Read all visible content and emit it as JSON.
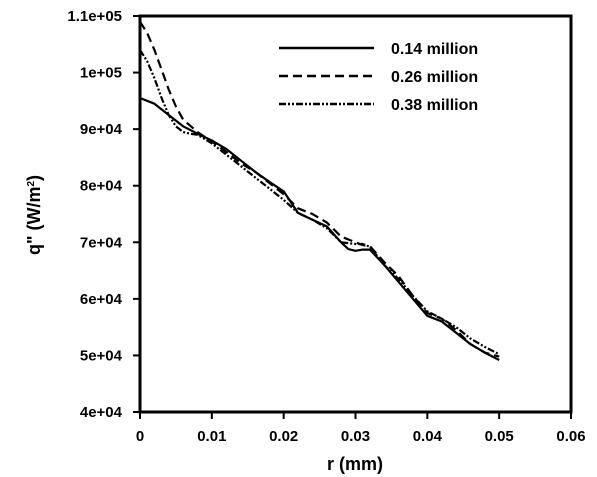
{
  "chart_data": {
    "type": "line",
    "title": "",
    "xlabel": "r (mm)",
    "ylabel_main": "q\" (W/m",
    "ylabel_sup": "2",
    "ylabel_close": ")",
    "xlim": [
      0,
      0.06
    ],
    "ylim": [
      40000,
      110000
    ],
    "xticks": [
      0,
      0.01,
      0.02,
      0.03,
      0.04,
      0.05,
      0.06
    ],
    "xtick_labels": [
      "0",
      "0.01",
      "0.02",
      "0.03",
      "0.04",
      "0.05",
      "0.06"
    ],
    "yticks": [
      40000,
      50000,
      60000,
      70000,
      80000,
      90000,
      100000,
      110000
    ],
    "ytick_labels": [
      "4e+04",
      "5e+04",
      "6e+04",
      "7e+04",
      "8e+04",
      "9e+04",
      "1e+05",
      "1.1e+05"
    ],
    "legend_position": "top-right",
    "grid": false,
    "series": [
      {
        "name": "0.14 million",
        "style": "solid",
        "color": "#000000",
        "x": [
          0,
          0.002,
          0.004,
          0.006,
          0.008,
          0.01,
          0.012,
          0.014,
          0.016,
          0.018,
          0.02,
          0.022,
          0.024,
          0.026,
          0.028,
          0.029,
          0.03,
          0.031,
          0.032,
          0.034,
          0.036,
          0.038,
          0.04,
          0.042,
          0.044,
          0.046,
          0.048,
          0.05
        ],
        "y": [
          95500,
          94500,
          92500,
          90500,
          89200,
          88000,
          86500,
          84500,
          82500,
          80700,
          79000,
          75200,
          74000,
          72800,
          70000,
          68800,
          68500,
          68700,
          68700,
          66000,
          63000,
          60000,
          57000,
          56000,
          54000,
          52000,
          50500,
          49200
        ]
      },
      {
        "name": "0.26 million",
        "style": "dashed",
        "color": "#000000",
        "x": [
          0,
          0.001,
          0.002,
          0.003,
          0.004,
          0.005,
          0.006,
          0.008,
          0.01,
          0.012,
          0.014,
          0.016,
          0.018,
          0.02,
          0.022,
          0.024,
          0.026,
          0.028,
          0.03,
          0.031,
          0.032,
          0.034,
          0.036,
          0.038,
          0.04,
          0.042,
          0.044,
          0.046,
          0.048,
          0.05
        ],
        "y": [
          109000,
          107000,
          104000,
          100500,
          97000,
          94000,
          91700,
          89500,
          87800,
          86000,
          84000,
          82500,
          80500,
          78500,
          76000,
          75000,
          73500,
          71000,
          70000,
          69500,
          69300,
          66500,
          64000,
          60500,
          57500,
          56500,
          54500,
          52000,
          50500,
          49800
        ]
      },
      {
        "name": "0.38 million",
        "style": "dash-dot-dot",
        "color": "#000000",
        "x": [
          0,
          0.001,
          0.002,
          0.003,
          0.004,
          0.005,
          0.006,
          0.007,
          0.008,
          0.01,
          0.012,
          0.014,
          0.016,
          0.018,
          0.02,
          0.022,
          0.024,
          0.026,
          0.028,
          0.03,
          0.031,
          0.032,
          0.034,
          0.036,
          0.038,
          0.04,
          0.042,
          0.044,
          0.046,
          0.048,
          0.05
        ],
        "y": [
          104000,
          102000,
          99000,
          95500,
          92500,
          90500,
          89500,
          89200,
          89000,
          87500,
          85500,
          83500,
          81500,
          79500,
          77500,
          75200,
          74000,
          72500,
          70000,
          69700,
          69700,
          69200,
          66000,
          63500,
          60500,
          57800,
          56500,
          55000,
          53000,
          51500,
          50200
        ]
      }
    ]
  }
}
